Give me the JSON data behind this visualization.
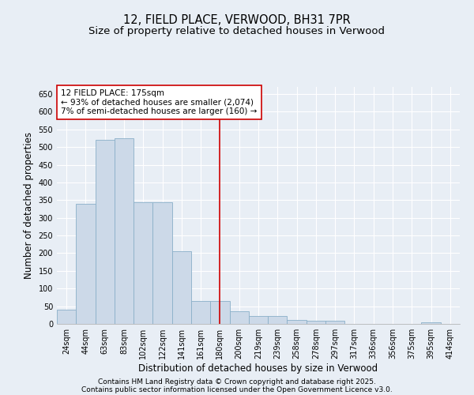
{
  "title": "12, FIELD PLACE, VERWOOD, BH31 7PR",
  "subtitle": "Size of property relative to detached houses in Verwood",
  "xlabel": "Distribution of detached houses by size in Verwood",
  "ylabel": "Number of detached properties",
  "bar_color": "#ccd9e8",
  "bar_edge_color": "#8aafc8",
  "background_color": "#e8eef5",
  "grid_color": "#ffffff",
  "bins": [
    "24sqm",
    "44sqm",
    "63sqm",
    "83sqm",
    "102sqm",
    "122sqm",
    "141sqm",
    "161sqm",
    "180sqm",
    "200sqm",
    "219sqm",
    "239sqm",
    "258sqm",
    "278sqm",
    "297sqm",
    "317sqm",
    "336sqm",
    "356sqm",
    "375sqm",
    "395sqm",
    "414sqm"
  ],
  "values": [
    40,
    340,
    520,
    525,
    345,
    345,
    205,
    65,
    65,
    35,
    22,
    22,
    12,
    8,
    8,
    0,
    0,
    0,
    0,
    5,
    0
  ],
  "ylim": [
    0,
    670
  ],
  "yticks": [
    0,
    50,
    100,
    150,
    200,
    250,
    300,
    350,
    400,
    450,
    500,
    550,
    600,
    650
  ],
  "vline_x_idx": 8.0,
  "vline_color": "#cc0000",
  "annotation_text": "12 FIELD PLACE: 175sqm\n← 93% of detached houses are smaller (2,074)\n7% of semi-detached houses are larger (160) →",
  "annotation_box_color": "#ffffff",
  "annotation_box_edge_color": "#cc0000",
  "footer_line1": "Contains HM Land Registry data © Crown copyright and database right 2025.",
  "footer_line2": "Contains public sector information licensed under the Open Government Licence v3.0.",
  "title_fontsize": 10.5,
  "subtitle_fontsize": 9.5,
  "xlabel_fontsize": 8.5,
  "ylabel_fontsize": 8.5,
  "tick_fontsize": 7,
  "annotation_fontsize": 7.5,
  "footer_fontsize": 6.5
}
